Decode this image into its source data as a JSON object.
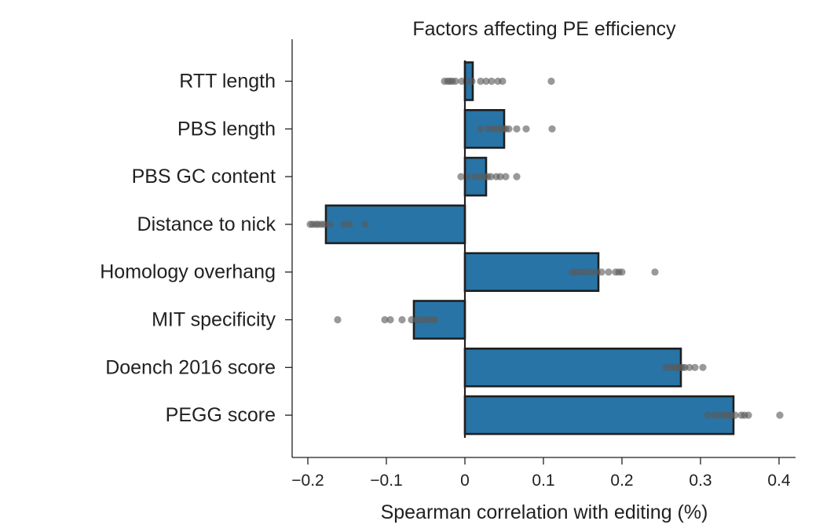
{
  "chart_data": {
    "type": "bar",
    "orientation": "horizontal",
    "title": "Factors affecting PE efficiency",
    "xlabel": "Spearman correlation with editing (%)",
    "ylabel": "",
    "xlim": [
      -0.22,
      0.42
    ],
    "xticks": [
      -0.2,
      -0.1,
      0,
      0.1,
      0.2,
      0.3,
      0.4
    ],
    "xtick_labels": [
      "−0.2",
      "−0.1",
      "0",
      "0.1",
      "0.2",
      "0.3",
      "0.4"
    ],
    "grid": false,
    "bar_color": "#2874a6",
    "bar_edge_color": "#1f1f1f",
    "point_color": "#5a5a5a",
    "categories": [
      "RTT length",
      "PBS length",
      "PBS GC content",
      "Distance to nick",
      "Homology overhang",
      "MIT specificity",
      "Doench 2016 score",
      "PEGG score"
    ],
    "values": [
      0.01,
      0.05,
      0.027,
      -0.177,
      0.17,
      -0.065,
      0.275,
      0.342
    ],
    "points": [
      [
        -0.026,
        -0.022,
        -0.019,
        -0.016,
        -0.012,
        -0.004,
        0.002,
        0.009,
        0.02,
        0.027,
        0.034,
        0.042,
        0.048,
        0.11
      ],
      [
        0.02,
        0.03,
        0.036,
        0.041,
        0.046,
        0.049,
        0.052,
        0.056,
        0.066,
        0.078,
        0.111
      ],
      [
        -0.005,
        0.003,
        0.013,
        0.02,
        0.025,
        0.029,
        0.033,
        0.04,
        0.045,
        0.052,
        0.066
      ],
      [
        -0.197,
        -0.194,
        -0.19,
        -0.187,
        -0.183,
        -0.179,
        -0.172,
        -0.154,
        -0.147,
        -0.127
      ],
      [
        0.137,
        0.142,
        0.147,
        0.154,
        0.161,
        0.168,
        0.174,
        0.183,
        0.192,
        0.196,
        0.2,
        0.242
      ],
      [
        -0.162,
        -0.102,
        -0.095,
        -0.08,
        -0.068,
        -0.061,
        -0.055,
        -0.049,
        -0.043,
        -0.038
      ],
      [
        0.256,
        0.262,
        0.268,
        0.271,
        0.274,
        0.277,
        0.28,
        0.286,
        0.293,
        0.303
      ],
      [
        0.309,
        0.318,
        0.324,
        0.33,
        0.335,
        0.339,
        0.344,
        0.352,
        0.356,
        0.361,
        0.401
      ]
    ]
  }
}
